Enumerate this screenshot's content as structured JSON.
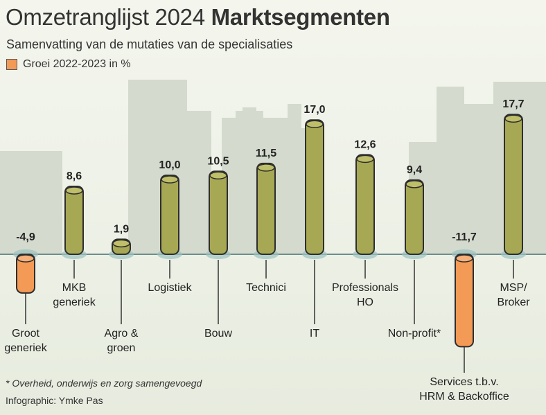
{
  "title_light": "Omzetranglijst 2024",
  "title_bold": "Marktsegmenten",
  "subtitle": "Samenvatting van de mutaties van de specialisaties",
  "legend_label": "Groei 2022-2023 in %",
  "footnote": "* Overheid, onderwijs en zorg samengevoegd",
  "credit": "Infographic: Ymke Pas",
  "colors": {
    "positive": "#a7a853",
    "negative": "#f39a56",
    "outline": "#2e2e2e",
    "baseline": "#6c8e8b",
    "skyline": "#d4dacd"
  },
  "chart_data": {
    "type": "bar",
    "categories": [
      "Groot\ngeneriek",
      "MKB\ngeneriek",
      "Agro &\ngroen",
      "Logistiek",
      "Bouw",
      "Technici",
      "IT",
      "Professionals\nHO",
      "Non-profit*",
      "Services t.b.v.\nHRM & Backoffice",
      "MSP/\nBroker"
    ],
    "value_labels": [
      "-4,9",
      "8,6",
      "1,9",
      "10,0",
      "10,5",
      "11,5",
      "17,0",
      "12,6",
      "9,4",
      "-11,7",
      "17,7"
    ],
    "series": [
      {
        "name": "Groei 2022-2023 in %",
        "values": [
          -4.9,
          8.6,
          1.9,
          10.0,
          10.5,
          11.5,
          17.0,
          12.6,
          9.4,
          -11.7,
          17.7
        ]
      }
    ],
    "ylabel": "",
    "xlabel": ""
  }
}
